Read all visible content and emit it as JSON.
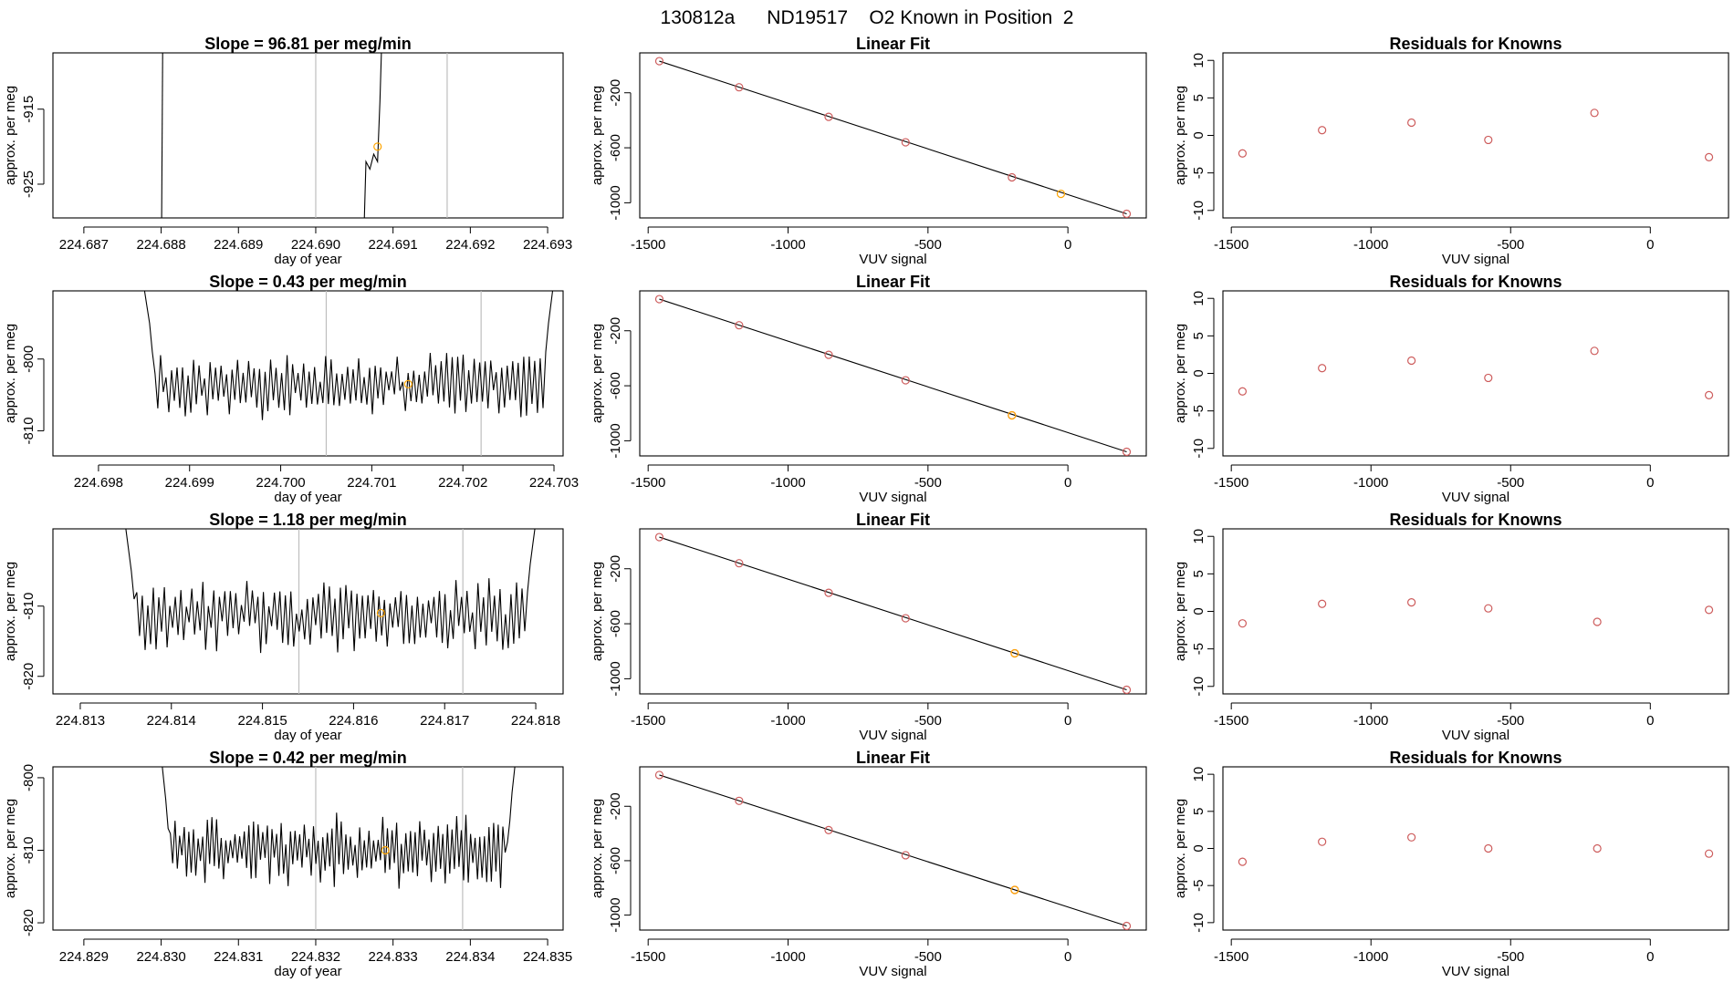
{
  "page_title": "130812a      ND19517    O2 Known in Position  2",
  "colors": {
    "axis": "#000000",
    "line": "#000000",
    "vline": "#bebebe",
    "known_point": "#cd5c5c",
    "highlight_point": "#ffa500"
  },
  "chart_data": [
    {
      "row": 1,
      "type": "line",
      "title": "Slope =  96.81  per meg/min",
      "xlabel": "day of year",
      "ylabel": "approx. per meg",
      "xlim": [
        224.6866,
        224.6932
      ],
      "ylim": [
        -929.5,
        -907.5
      ],
      "xticks": [
        224.687,
        224.688,
        224.689,
        224.69,
        224.691,
        224.692,
        224.693
      ],
      "xtick_labels": [
        "224.687",
        "224.688",
        "224.689",
        "224.690",
        "224.691",
        "224.692",
        "224.693"
      ],
      "yticks": [
        -915,
        -925
      ],
      "ytick_labels": [
        "-915",
        "-925"
      ],
      "vlines": [
        224.69,
        224.6917
      ],
      "series": [
        {
          "x": [
            224.688,
            224.68803
          ],
          "y": [
            -940,
            -890
          ]
        },
        {
          "x": [
            224.6906,
            224.69065,
            224.6907,
            224.69075,
            224.6908,
            224.69083,
            224.6909
          ],
          "y": [
            -940,
            -922,
            -923,
            -921,
            -922,
            -914,
            -890
          ]
        }
      ],
      "marker": {
        "x": 224.6908,
        "y": -920
      }
    },
    {
      "row": 2,
      "type": "line",
      "title": "Slope =  0.43  per meg/min",
      "xlabel": "day of year",
      "ylabel": "approx. per meg",
      "xlim": [
        224.6975,
        224.7031
      ],
      "ylim": [
        -813.5,
        -790.5
      ],
      "xticks": [
        224.698,
        224.699,
        224.7,
        224.701,
        224.702,
        224.703
      ],
      "xtick_labels": [
        "224.698",
        "224.699",
        "224.700",
        "224.701",
        "224.702",
        "224.703"
      ],
      "yticks": [
        -800,
        -810
      ],
      "ytick_labels": [
        "-800",
        "-810"
      ],
      "vlines": [
        224.7005,
        224.7022
      ],
      "trace": {
        "x0": 224.6985,
        "x1": 224.703,
        "n": 150,
        "mean": -803.5,
        "amp": 3.2,
        "seed": 11,
        "left": [
          -790,
          -792.5,
          -795,
          -799
        ],
        "right": [
          -799,
          -795,
          -792,
          -789
        ]
      },
      "marker": {
        "x": 224.7014,
        "y": -803.5
      }
    },
    {
      "row": 3,
      "type": "line",
      "title": "Slope =  1.18  per meg/min",
      "xlabel": "day of year",
      "ylabel": "approx. per meg",
      "xlim": [
        224.8127,
        224.8183
      ],
      "ylim": [
        -822.5,
        -799
      ],
      "xticks": [
        224.813,
        224.814,
        224.815,
        224.816,
        224.817,
        224.818
      ],
      "xtick_labels": [
        "224.813",
        "224.814",
        "224.815",
        "224.816",
        "224.817",
        "224.818"
      ],
      "yticks": [
        -810,
        -820
      ],
      "ytick_labels": [
        "-810",
        "-820"
      ],
      "vlines": [
        224.8154,
        224.8172
      ],
      "trace": {
        "x0": 224.8135,
        "x1": 224.818,
        "n": 150,
        "mean": -811.5,
        "amp": 3.6,
        "seed": 29,
        "left": [
          -799,
          -802,
          -805,
          -809
        ],
        "right": [
          -808,
          -804,
          -801,
          -798
        ]
      },
      "marker": {
        "x": 224.8163,
        "y": -811
      }
    },
    {
      "row": 4,
      "type": "line",
      "title": "Slope =  0.42  per meg/min",
      "xlabel": "day of year",
      "ylabel": "approx. per meg",
      "xlim": [
        224.8286,
        224.8352
      ],
      "ylim": [
        -821,
        -798.5
      ],
      "xticks": [
        224.829,
        224.83,
        224.831,
        224.832,
        224.833,
        224.834,
        224.835
      ],
      "xtick_labels": [
        "224.829",
        "224.830",
        "224.831",
        "224.832",
        "224.833",
        "224.834",
        "224.835"
      ],
      "yticks": [
        -800,
        -810,
        -820
      ],
      "ytick_labels": [
        "-800",
        "-810",
        "-820"
      ],
      "vlines": [
        224.832,
        224.8339
      ],
      "trace": {
        "x0": 224.83,
        "x1": 224.8346,
        "n": 155,
        "mean": -810,
        "amp": 3.4,
        "seed": 47,
        "left": [
          -797,
          -800,
          -803,
          -807
        ],
        "right": [
          -806,
          -802,
          -799,
          -796
        ]
      },
      "marker": {
        "x": 224.8329,
        "y": -810
      }
    },
    {
      "row": 1,
      "type": "scatter",
      "title": "Linear Fit",
      "xlabel": "VUV signal",
      "ylabel": "approx. per meg",
      "xlim": [
        -1530,
        280
      ],
      "ylim": [
        -1110,
        90
      ],
      "xticks": [
        -1500,
        -1000,
        -500,
        0
      ],
      "xtick_labels": [
        "-1500",
        "-1000",
        "-500",
        "0"
      ],
      "yticks": [
        -200,
        -600,
        -1000
      ],
      "ytick_labels": [
        "-200",
        "-600",
        "-1000"
      ],
      "fit_line": {
        "x": [
          -1460,
          210
        ],
        "y": [
          30,
          -1080
        ]
      },
      "points": {
        "x": [
          -1460,
          -1175,
          -855,
          -580,
          -200,
          210
        ],
        "y": [
          30,
          -160,
          -375,
          -560,
          -815,
          -1080
        ]
      },
      "marker": {
        "x": -25,
        "y": -935
      }
    },
    {
      "row": 2,
      "type": "scatter",
      "title": "Linear Fit",
      "xlabel": "VUV signal",
      "ylabel": "approx. per meg",
      "xlim": [
        -1530,
        280
      ],
      "ylim": [
        -1110,
        90
      ],
      "xticks": [
        -1500,
        -1000,
        -500,
        0
      ],
      "xtick_labels": [
        "-1500",
        "-1000",
        "-500",
        "0"
      ],
      "yticks": [
        -200,
        -600,
        -1000
      ],
      "ytick_labels": [
        "-200",
        "-600",
        "-1000"
      ],
      "fit_line": {
        "x": [
          -1460,
          210
        ],
        "y": [
          30,
          -1080
        ]
      },
      "points": {
        "x": [
          -1460,
          -1175,
          -855,
          -580,
          -200,
          210
        ],
        "y": [
          30,
          -160,
          -375,
          -560,
          -815,
          -1080
        ]
      },
      "marker": {
        "x": -200,
        "y": -815
      }
    },
    {
      "row": 3,
      "type": "scatter",
      "title": "Linear Fit",
      "xlabel": "VUV signal",
      "ylabel": "approx. per meg",
      "xlim": [
        -1530,
        280
      ],
      "ylim": [
        -1110,
        90
      ],
      "xticks": [
        -1500,
        -1000,
        -500,
        0
      ],
      "xtick_labels": [
        "-1500",
        "-1000",
        "-500",
        "0"
      ],
      "yticks": [
        -200,
        -600,
        -1000
      ],
      "ytick_labels": [
        "-200",
        "-600",
        "-1000"
      ],
      "fit_line": {
        "x": [
          -1460,
          210
        ],
        "y": [
          30,
          -1080
        ]
      },
      "points": {
        "x": [
          -1460,
          -1175,
          -855,
          -580,
          -190,
          210
        ],
        "y": [
          30,
          -160,
          -375,
          -560,
          -815,
          -1080
        ]
      },
      "marker": {
        "x": -190,
        "y": -815
      }
    },
    {
      "row": 4,
      "type": "scatter",
      "title": "Linear Fit",
      "xlabel": "VUV signal",
      "ylabel": "approx. per meg",
      "xlim": [
        -1530,
        280
      ],
      "ylim": [
        -1110,
        90
      ],
      "xticks": [
        -1500,
        -1000,
        -500,
        0
      ],
      "xtick_labels": [
        "-1500",
        "-1000",
        "-500",
        "0"
      ],
      "yticks": [
        -200,
        -600,
        -1000
      ],
      "ytick_labels": [
        "-200",
        "-600",
        "-1000"
      ],
      "fit_line": {
        "x": [
          -1460,
          210
        ],
        "y": [
          30,
          -1080
        ]
      },
      "points": {
        "x": [
          -1460,
          -1175,
          -855,
          -580,
          -190,
          210
        ],
        "y": [
          30,
          -160,
          -375,
          -560,
          -815,
          -1080
        ]
      },
      "marker": {
        "x": -190,
        "y": -815
      }
    },
    {
      "row": 1,
      "type": "scatter",
      "title": "Residuals for Knowns",
      "xlabel": "VUV signal",
      "ylabel": "approx. per meg",
      "xlim": [
        -1530,
        280
      ],
      "ylim": [
        -11,
        11
      ],
      "xticks": [
        -1500,
        -1000,
        -500,
        0
      ],
      "xtick_labels": [
        "-1500",
        "-1000",
        "-500",
        "0"
      ],
      "yticks": [
        10,
        5,
        0,
        -5,
        -10
      ],
      "ytick_labels": [
        "10",
        "5",
        "0",
        "-5",
        "-10"
      ],
      "points": {
        "x": [
          -1460,
          -1175,
          -855,
          -580,
          -200,
          210
        ],
        "y": [
          -2.4,
          0.7,
          1.7,
          -0.6,
          3.0,
          -2.9
        ]
      }
    },
    {
      "row": 2,
      "type": "scatter",
      "title": "Residuals for Knowns",
      "xlabel": "VUV signal",
      "ylabel": "approx. per meg",
      "xlim": [
        -1530,
        280
      ],
      "ylim": [
        -11,
        11
      ],
      "xticks": [
        -1500,
        -1000,
        -500,
        0
      ],
      "xtick_labels": [
        "-1500",
        "-1000",
        "-500",
        "0"
      ],
      "yticks": [
        10,
        5,
        0,
        -5,
        -10
      ],
      "ytick_labels": [
        "10",
        "5",
        "0",
        "-5",
        "-10"
      ],
      "points": {
        "x": [
          -1460,
          -1175,
          -855,
          -580,
          -200,
          210
        ],
        "y": [
          -2.4,
          0.7,
          1.7,
          -0.6,
          3.0,
          -2.9
        ]
      }
    },
    {
      "row": 3,
      "type": "scatter",
      "title": "Residuals for Knowns",
      "xlabel": "VUV signal",
      "ylabel": "approx. per meg",
      "xlim": [
        -1530,
        280
      ],
      "ylim": [
        -11,
        11
      ],
      "xticks": [
        -1500,
        -1000,
        -500,
        0
      ],
      "xtick_labels": [
        "-1500",
        "-1000",
        "-500",
        "0"
      ],
      "yticks": [
        10,
        5,
        0,
        -5,
        -10
      ],
      "ytick_labels": [
        "10",
        "5",
        "0",
        "-5",
        "-10"
      ],
      "points": {
        "x": [
          -1460,
          -1175,
          -855,
          -580,
          -190,
          210
        ],
        "y": [
          -1.6,
          1.0,
          1.2,
          0.4,
          -1.4,
          0.2
        ]
      }
    },
    {
      "row": 4,
      "type": "scatter",
      "title": "Residuals for Knowns",
      "xlabel": "VUV signal",
      "ylabel": "approx. per meg",
      "xlim": [
        -1530,
        280
      ],
      "ylim": [
        -11,
        11
      ],
      "xticks": [
        -1500,
        -1000,
        -500,
        0
      ],
      "xtick_labels": [
        "-1500",
        "-1000",
        "-500",
        "0"
      ],
      "yticks": [
        10,
        5,
        0,
        -5,
        -10
      ],
      "ytick_labels": [
        "10",
        "5",
        "0",
        "-5",
        "-10"
      ],
      "points": {
        "x": [
          -1460,
          -1175,
          -855,
          -580,
          -190,
          210
        ],
        "y": [
          -1.8,
          0.9,
          1.5,
          0.0,
          0.0,
          -0.7
        ]
      }
    }
  ]
}
